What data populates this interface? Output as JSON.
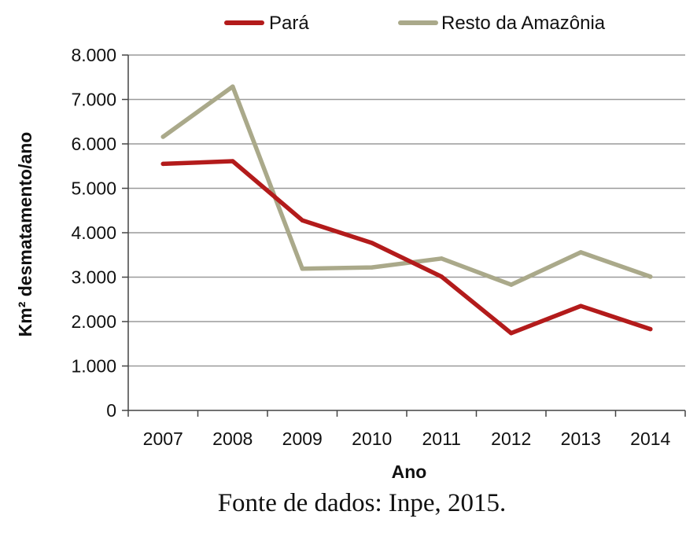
{
  "chart_data": {
    "type": "line",
    "x": [
      "2007",
      "2008",
      "2009",
      "2010",
      "2011",
      "2012",
      "2013",
      "2014"
    ],
    "series": [
      {
        "name": "Pará",
        "color": "#b31b1b",
        "values": [
          5550,
          5610,
          4280,
          3770,
          3010,
          1740,
          2350,
          1830
        ]
      },
      {
        "name": "Resto da Amazônia",
        "color": "#aaa98a",
        "values": [
          6160,
          7290,
          3190,
          3220,
          3420,
          2830,
          3560,
          3010
        ]
      }
    ],
    "xlabel": "Ano",
    "ylabel": "Km² desmatamento/ano",
    "ylim": [
      0,
      8000
    ],
    "yticks": [
      "0",
      "1.000",
      "2.000",
      "3.000",
      "4.000",
      "5.000",
      "6.000",
      "7.000",
      "8.000"
    ],
    "yticks_values": [
      0,
      1000,
      2000,
      3000,
      4000,
      5000,
      6000,
      7000,
      8000
    ],
    "grid": true,
    "legend": "top-center"
  },
  "source_note": "Fonte de dados: Inpe, 2015."
}
